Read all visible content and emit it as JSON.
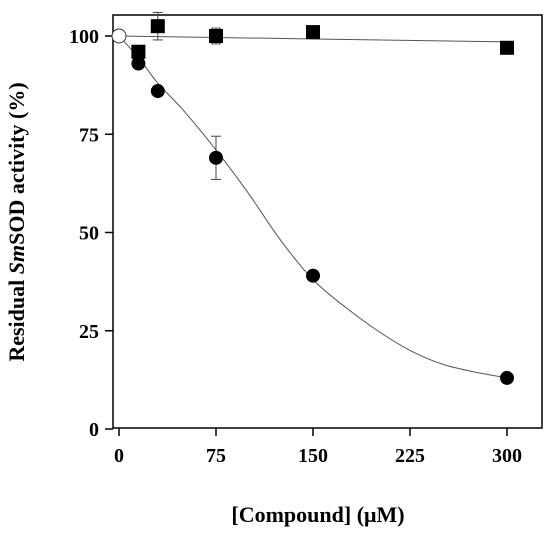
{
  "chart_data": {
    "type": "scatter",
    "xlabel": "[Compound] (μM)",
    "ylabel_parts": [
      "Residual ",
      "Sm",
      "SOD activity (%)"
    ],
    "xlim": [
      0,
      320
    ],
    "ylim": [
      0,
      107
    ],
    "xticks": [
      0,
      75,
      150,
      225,
      300
    ],
    "yticks": [
      0,
      25,
      50,
      75,
      100
    ],
    "grid": false,
    "reference_point": {
      "x": 0,
      "y": 100,
      "marker": "open-circle"
    },
    "series": [
      {
        "marker": "square",
        "color": "#000000",
        "points": [
          {
            "x": 15,
            "y": 96,
            "err": 1
          },
          {
            "x": 30,
            "y": 102.5,
            "err": 3.5
          },
          {
            "x": 75,
            "y": 100,
            "err": 2
          },
          {
            "x": 150,
            "y": 101,
            "err": 1
          },
          {
            "x": 300,
            "y": 97,
            "err": 1
          }
        ],
        "fit": [
          [
            0,
            100
          ],
          [
            300,
            98.5
          ]
        ]
      },
      {
        "marker": "circle",
        "color": "#000000",
        "points": [
          {
            "x": 15,
            "y": 93,
            "err": 1
          },
          {
            "x": 30,
            "y": 86,
            "err": 1
          },
          {
            "x": 75,
            "y": 69,
            "err": 5.5
          },
          {
            "x": 150,
            "y": 39,
            "err": 1
          },
          {
            "x": 300,
            "y": 13,
            "err": 1
          }
        ],
        "fit": [
          [
            0,
            100
          ],
          [
            15,
            94.5
          ],
          [
            30,
            88
          ],
          [
            50,
            81
          ],
          [
            75,
            71
          ],
          [
            100,
            60
          ],
          [
            125,
            48
          ],
          [
            150,
            38
          ],
          [
            175,
            31
          ],
          [
            200,
            25
          ],
          [
            225,
            20
          ],
          [
            250,
            16.5
          ],
          [
            275,
            14.5
          ],
          [
            300,
            13
          ]
        ]
      }
    ]
  }
}
